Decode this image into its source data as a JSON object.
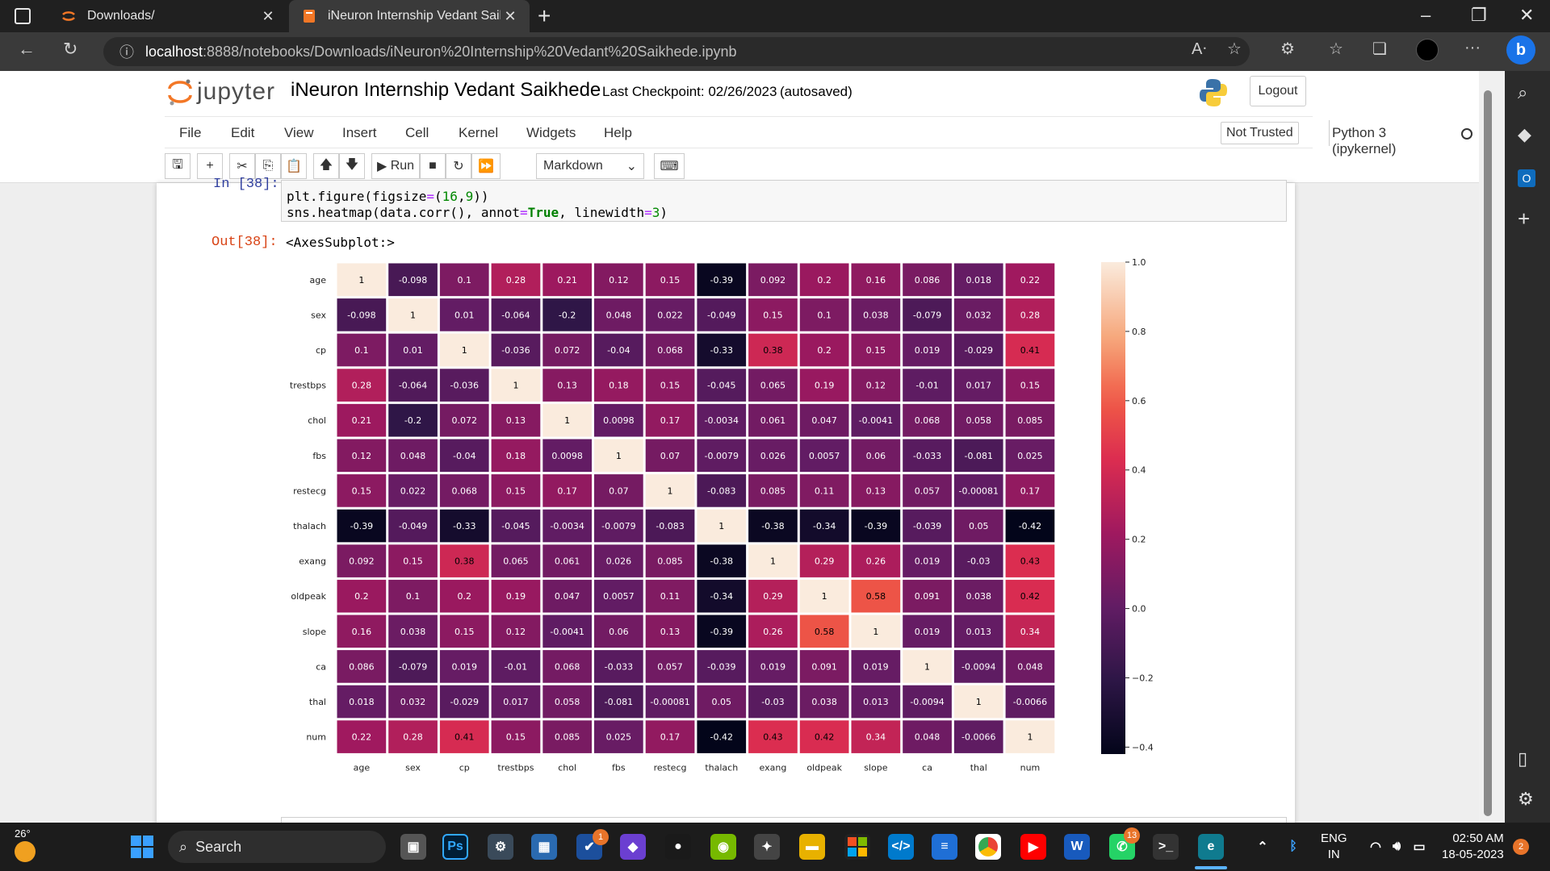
{
  "browser": {
    "tabs": [
      {
        "label": "Downloads/"
      },
      {
        "label": "iNeuron Internship Vedant Saikh"
      }
    ],
    "url_host": "localhost",
    "url_rest": ":8888/notebooks/Downloads/iNeuron%20Internship%20Vedant%20Saikhede.ipynb"
  },
  "jupyter": {
    "logo_text": "jupyter",
    "notebook_title": "iNeuron Internship Vedant Saikhede",
    "checkpoint": "Last Checkpoint: 02/26/2023",
    "autosaved": "(autosaved)",
    "logout_label": "Logout",
    "menu": [
      "File",
      "Edit",
      "View",
      "Insert",
      "Cell",
      "Kernel",
      "Widgets",
      "Help"
    ],
    "trust_label": "Not Trusted",
    "kernel_label": "Python 3 (ipykernel)",
    "run_label": "Run",
    "cell_type": "Markdown"
  },
  "cell": {
    "in_prompt": "In [38]:",
    "code_line1_a": "plt.figure(figsize",
    "code_line1_b": "=",
    "code_line1_c": "(",
    "code_line1_d": "16",
    "code_line1_e": ",",
    "code_line1_f": "9",
    "code_line1_g": "))",
    "code_line2_a": "sns.heatmap(data.corr(), annot",
    "code_line2_b": "=",
    "code_line2_c": "True",
    "code_line2_d": ", linewidth",
    "code_line2_e": "=",
    "code_line2_f": "3",
    "code_line2_g": ")",
    "out_prompt": "Out[38]:",
    "out_text": "<AxesSubplot:>"
  },
  "chart_data": {
    "type": "heatmap",
    "labels": [
      "age",
      "sex",
      "cp",
      "trestbps",
      "chol",
      "fbs",
      "restecg",
      "thalach",
      "exang",
      "oldpeak",
      "slope",
      "ca",
      "thal",
      "num"
    ],
    "cell_labels": [
      [
        "1",
        "-0.098",
        "0.1",
        "0.28",
        "0.21",
        "0.12",
        "0.15",
        "-0.39",
        "0.092",
        "0.2",
        "0.16",
        "0.086",
        "0.018",
        "0.22"
      ],
      [
        "-0.098",
        "1",
        "0.01",
        "-0.064",
        "-0.2",
        "0.048",
        "0.022",
        "-0.049",
        "0.15",
        "0.1",
        "0.038",
        "-0.079",
        "0.032",
        "0.28"
      ],
      [
        "0.1",
        "0.01",
        "1",
        "-0.036",
        "0.072",
        "-0.04",
        "0.068",
        "-0.33",
        "0.38",
        "0.2",
        "0.15",
        "0.019",
        "-0.029",
        "0.41"
      ],
      [
        "0.28",
        "-0.064",
        "-0.036",
        "1",
        "0.13",
        "0.18",
        "0.15",
        "-0.045",
        "0.065",
        "0.19",
        "0.12",
        "-0.01",
        "0.017",
        "0.15"
      ],
      [
        "0.21",
        "-0.2",
        "0.072",
        "0.13",
        "1",
        "0.0098",
        "0.17",
        "-0.0034",
        "0.061",
        "0.047",
        "-0.0041",
        "0.068",
        "0.058",
        "0.085"
      ],
      [
        "0.12",
        "0.048",
        "-0.04",
        "0.18",
        "0.0098",
        "1",
        "0.07",
        "-0.0079",
        "0.026",
        "0.0057",
        "0.06",
        "-0.033",
        "-0.081",
        "0.025"
      ],
      [
        "0.15",
        "0.022",
        "0.068",
        "0.15",
        "0.17",
        "0.07",
        "1",
        "-0.083",
        "0.085",
        "0.11",
        "0.13",
        "0.057",
        "-0.00081",
        "0.17"
      ],
      [
        "-0.39",
        "-0.049",
        "-0.33",
        "-0.045",
        "-0.0034",
        "-0.0079",
        "-0.083",
        "1",
        "-0.38",
        "-0.34",
        "-0.39",
        "-0.039",
        "0.05",
        "-0.42"
      ],
      [
        "0.092",
        "0.15",
        "0.38",
        "0.065",
        "0.061",
        "0.026",
        "0.085",
        "-0.38",
        "1",
        "0.29",
        "0.26",
        "0.019",
        "-0.03",
        "0.43"
      ],
      [
        "0.2",
        "0.1",
        "0.2",
        "0.19",
        "0.047",
        "0.0057",
        "0.11",
        "-0.34",
        "0.29",
        "1",
        "0.58",
        "0.091",
        "0.038",
        "0.42"
      ],
      [
        "0.16",
        "0.038",
        "0.15",
        "0.12",
        "-0.0041",
        "0.06",
        "0.13",
        "-0.39",
        "0.26",
        "0.58",
        "1",
        "0.019",
        "0.013",
        "0.34"
      ],
      [
        "0.086",
        "-0.079",
        "0.019",
        "-0.01",
        "0.068",
        "-0.033",
        "0.057",
        "-0.039",
        "0.019",
        "0.091",
        "0.019",
        "1",
        "-0.0094",
        "0.048"
      ],
      [
        "0.018",
        "0.032",
        "-0.029",
        "0.017",
        "0.058",
        "-0.081",
        "-0.00081",
        "0.05",
        "-0.03",
        "0.038",
        "0.013",
        "-0.0094",
        "1",
        "-0.0066"
      ],
      [
        "0.22",
        "0.28",
        "0.41",
        "0.15",
        "0.085",
        "0.025",
        "0.17",
        "-0.42",
        "0.43",
        "0.42",
        "0.34",
        "0.048",
        "-0.0066",
        "1"
      ]
    ],
    "colorbar_ticks": [
      "1.0",
      "0.8",
      "0.6",
      "0.4",
      "0.2",
      "0.0",
      "−0.2",
      "−0.4"
    ],
    "colorbar_tick_values": [
      1.0,
      0.8,
      0.6,
      0.4,
      0.2,
      0.0,
      -0.2,
      -0.4
    ],
    "vmin": -0.42,
    "vmax": 1.0,
    "colormap": "rocket"
  },
  "taskbar": {
    "weather": "26°",
    "search_label": "Search",
    "lang_line1": "ENG",
    "lang_line2": "IN",
    "time": "02:50 AM",
    "date": "18-05-2023",
    "notif_count": "2",
    "whatsapp_badge": "13",
    "app_badge": "1"
  }
}
